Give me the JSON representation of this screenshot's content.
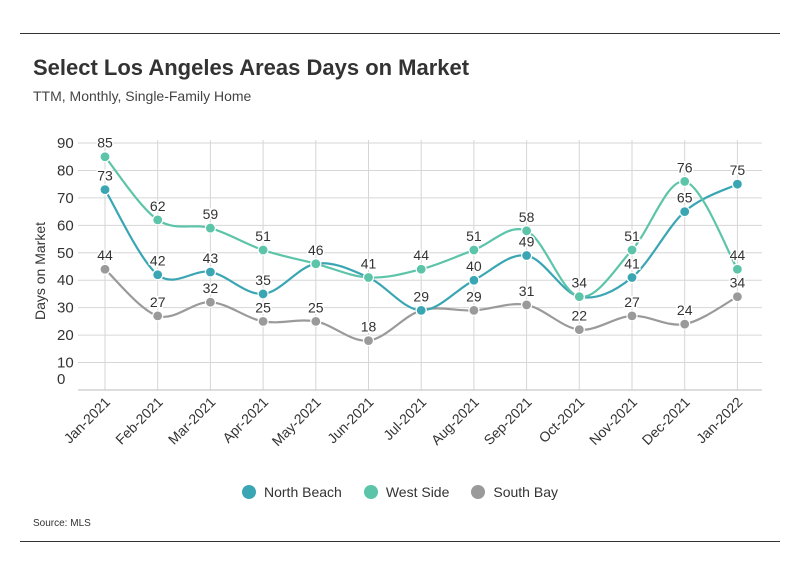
{
  "header": {
    "title": "Select Los Angeles Areas Days on Market",
    "subtitle": "TTM, Monthly, Single-Family Home"
  },
  "footer": {
    "source": "Source:  MLS"
  },
  "chart_data": {
    "type": "line",
    "title": "Select Los Angeles Areas Days on Market",
    "subtitle": "TTM, Monthly, Single-Family Home",
    "xlabel": "",
    "ylabel": "Days on Market",
    "ylim": [
      0,
      90
    ],
    "yticks": [
      0,
      10,
      20,
      30,
      40,
      50,
      60,
      70,
      80,
      90
    ],
    "grid": true,
    "legend_position": "bottom",
    "categories": [
      "Jan-2021",
      "Feb-2021",
      "Mar-2021",
      "Apr-2021",
      "May-2021",
      "Jun-2021",
      "Jul-2021",
      "Aug-2021",
      "Sep-2021",
      "Oct-2021",
      "Nov-2021",
      "Dec-2021",
      "Jan-2022"
    ],
    "series": [
      {
        "name": "North Beach",
        "color": "#3aa6b4",
        "values": [
          73,
          42,
          43,
          35,
          46,
          41,
          29,
          40,
          49,
          34,
          41,
          65,
          75
        ],
        "labels": [
          "73",
          "42",
          "43",
          "35",
          "",
          "",
          "",
          "40",
          "49",
          "34",
          "41",
          "65",
          "75"
        ]
      },
      {
        "name": "West Side",
        "color": "#5cc4a8",
        "values": [
          85,
          62,
          59,
          51,
          46,
          41,
          44,
          51,
          58,
          34,
          51,
          76,
          44
        ],
        "labels": [
          "85",
          "62",
          "59",
          "51",
          "46",
          "41",
          "44",
          "51",
          "58",
          "",
          "51",
          "76",
          "44"
        ]
      },
      {
        "name": "South Bay",
        "color": "#9a9a9a",
        "values": [
          44,
          27,
          32,
          25,
          25,
          18,
          29,
          29,
          31,
          22,
          27,
          24,
          34
        ],
        "labels": [
          "44",
          "27",
          "32",
          "25",
          "25",
          "18",
          "29",
          "29",
          "31",
          "22",
          "27",
          "24",
          "34"
        ]
      }
    ]
  }
}
